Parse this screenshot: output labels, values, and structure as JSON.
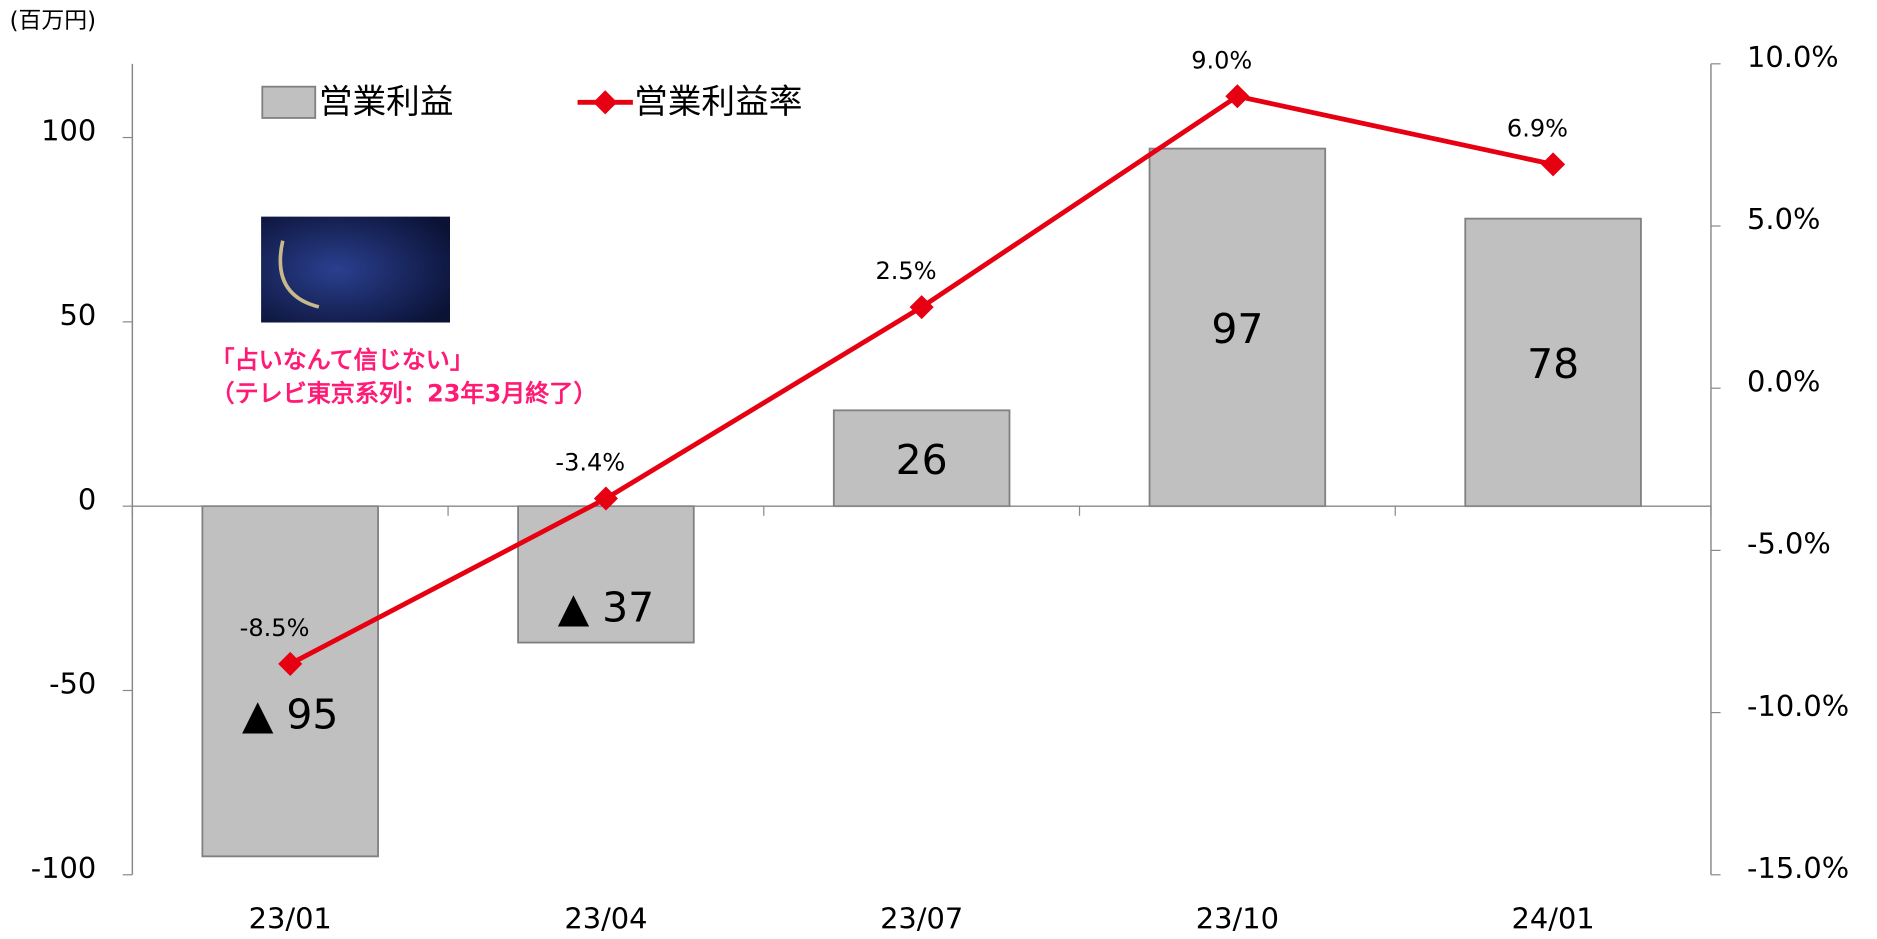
{
  "chart_data": {
    "type": "combo",
    "unit_label": "(百万円)",
    "categories": [
      "23/01",
      "23/04",
      "23/07",
      "23/10",
      "24/01"
    ],
    "series": [
      {
        "name": "営業利益",
        "type": "bar",
        "color": "#c0c0c0",
        "values": [
          -95,
          -37,
          26,
          97,
          78
        ],
        "value_labels": [
          "▲ 95",
          "▲ 37",
          "26",
          "97",
          "78"
        ]
      },
      {
        "name": "営業利益率",
        "type": "line",
        "axis": "y2",
        "color": "#e60012",
        "values": [
          -8.5,
          -3.4,
          2.5,
          9.0,
          6.9
        ],
        "value_labels": [
          "-8.5%",
          "-3.4%",
          "2.5%",
          "9.0%",
          "6.9%"
        ]
      }
    ],
    "ylim": [
      -100,
      120
    ],
    "yticks": [
      -100,
      -50,
      0,
      50,
      100
    ],
    "y2lim": [
      -15,
      10
    ],
    "y2ticks": [
      {
        "value": -15,
        "label": "-15.0%"
      },
      {
        "value": -10,
        "label": "-10.0%"
      },
      {
        "value": -5,
        "label": "-5.0%"
      },
      {
        "value": 0,
        "label": "0.0%"
      },
      {
        "value": 5,
        "label": "5.0%"
      },
      {
        "value": 10,
        "label": "10.0%"
      }
    ],
    "legend": "top-left",
    "annotations": [
      "「占いなんて信じない」",
      "（テレビ東京系列：23年3月終了）"
    ]
  }
}
